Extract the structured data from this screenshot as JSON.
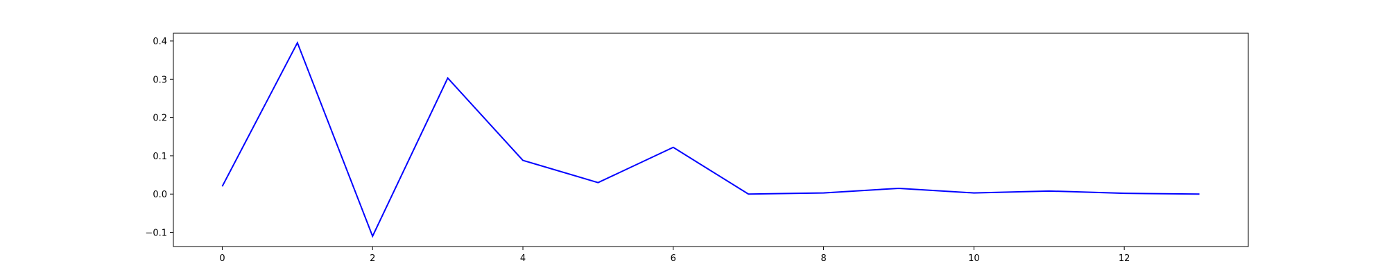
{
  "chart_data": {
    "type": "line",
    "title": "",
    "xlabel": "",
    "ylabel": "",
    "x": [
      0,
      1,
      2,
      3,
      4,
      5,
      6,
      7,
      8,
      9,
      10,
      11,
      12,
      13
    ],
    "series": [
      {
        "color": "#0000ff",
        "values": [
          0.02,
          0.395,
          -0.11,
          0.303,
          0.088,
          0.03,
          0.122,
          0.0,
          0.003,
          0.015,
          0.003,
          0.008,
          0.002,
          0.0
        ]
      }
    ],
    "xlim": [
      -0.65,
      13.65
    ],
    "ylim": [
      -0.137,
      0.42
    ],
    "xticks": [
      0,
      2,
      4,
      6,
      8,
      10,
      12
    ],
    "xtick_labels": [
      "0",
      "2",
      "4",
      "6",
      "8",
      "10",
      "12"
    ],
    "yticks": [
      -0.1,
      0.0,
      0.1,
      0.2,
      0.3,
      0.4
    ],
    "ytick_labels": [
      "−0.1",
      "0.0",
      "0.1",
      "0.2",
      "0.3",
      "0.4"
    ],
    "grid": false,
    "legend": "none"
  }
}
